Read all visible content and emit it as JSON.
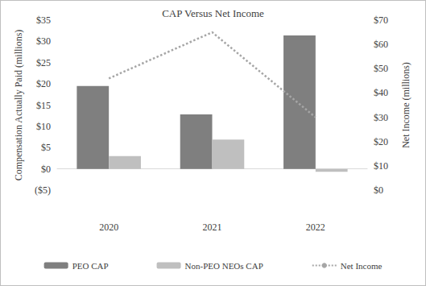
{
  "chart_data": {
    "type": "bar",
    "title": "CAP Versus Net Income",
    "y_label": "Compensation Actually Paid (millions)",
    "y2_label": "Net Income (millions)",
    "categories": [
      "2020",
      "2021",
      "2022"
    ],
    "series": [
      {
        "name": "PEO CAP",
        "type": "bar",
        "color": "#7f7f7f",
        "values": [
          19.5,
          12.8,
          31.4
        ]
      },
      {
        "name": "Non-PEO NEOs CAP",
        "type": "bar",
        "color": "#bfbfbf",
        "values": [
          3.0,
          6.9,
          -0.7
        ]
      },
      {
        "name": "Net Income",
        "type": "line",
        "axis": "y2",
        "color": "#a6a6a6",
        "line_style": "dotted",
        "values": [
          46,
          65,
          30
        ]
      }
    ],
    "ylim": [
      -5,
      35
    ],
    "yticks": [
      {
        "value": -5,
        "label": "($5)"
      },
      {
        "value": 0,
        "label": "$0"
      },
      {
        "value": 5,
        "label": "$5"
      },
      {
        "value": 10,
        "label": "$10"
      },
      {
        "value": 15,
        "label": "$15"
      },
      {
        "value": 20,
        "label": "$20"
      },
      {
        "value": 25,
        "label": "$25"
      },
      {
        "value": 30,
        "label": "$30"
      },
      {
        "value": 35,
        "label": "$35"
      }
    ],
    "y2lim": [
      0,
      70
    ],
    "y2ticks": [
      {
        "value": 0,
        "label": "$0"
      },
      {
        "value": 10,
        "label": "$10"
      },
      {
        "value": 20,
        "label": "$20"
      },
      {
        "value": 30,
        "label": "$30"
      },
      {
        "value": 40,
        "label": "$40"
      },
      {
        "value": 50,
        "label": "$50"
      },
      {
        "value": 60,
        "label": "$60"
      },
      {
        "value": 70,
        "label": "$70"
      }
    ],
    "grid": false,
    "legend": "bottom"
  }
}
